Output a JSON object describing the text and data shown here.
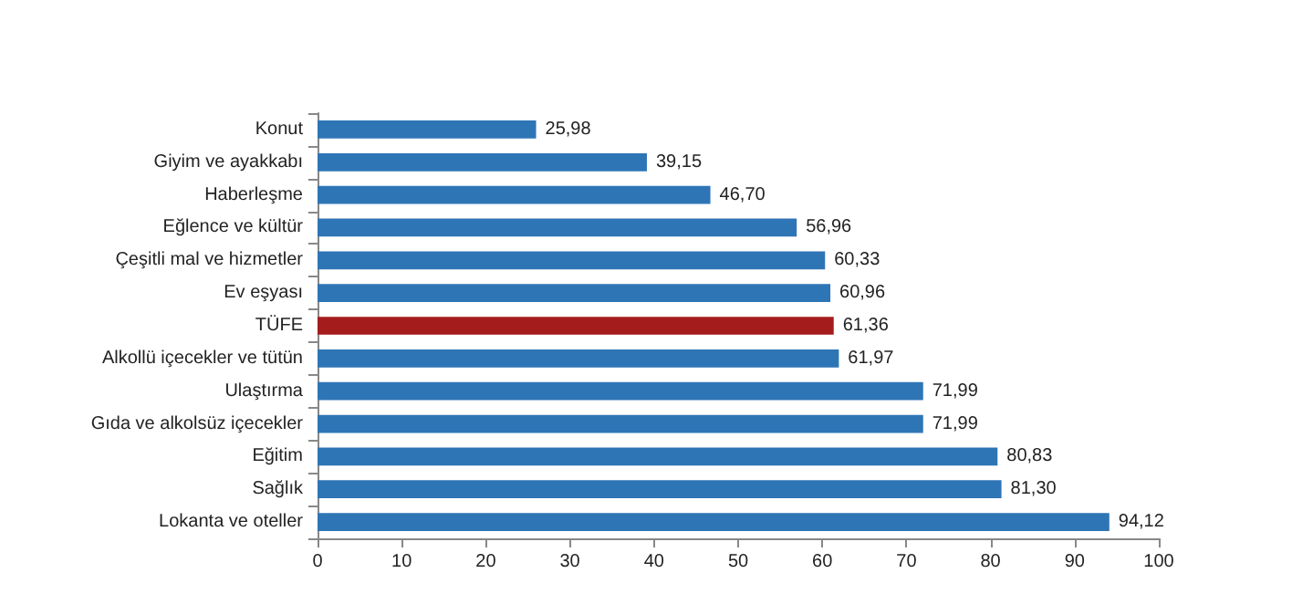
{
  "chart_data": {
    "type": "bar",
    "orientation": "horizontal",
    "categories": [
      "Konut",
      "Giyim ve ayakkabı",
      "Haberleşme",
      "Eğlence ve kültür",
      "Çeşitli mal ve hizmetler",
      "Ev eşyası",
      "TÜFE",
      "Alkollü içecekler ve tütün",
      "Ulaştırma",
      "Gıda ve alkolsüz içecekler",
      "Eğitim",
      "Sağlık",
      "Lokanta ve oteller"
    ],
    "values": [
      25.98,
      39.15,
      46.7,
      56.96,
      60.33,
      60.96,
      61.36,
      61.97,
      71.99,
      71.99,
      80.83,
      81.3,
      94.12
    ],
    "value_labels": [
      "25,98",
      "39,15",
      "46,70",
      "56,96",
      "60,33",
      "60,96",
      "61,36",
      "61,97",
      "71,99",
      "71,99",
      "80,83",
      "81,30",
      "94,12"
    ],
    "colors": [
      "#2e75b6",
      "#2e75b6",
      "#2e75b6",
      "#2e75b6",
      "#2e75b6",
      "#2e75b6",
      "#a51c1c",
      "#2e75b6",
      "#2e75b6",
      "#2e75b6",
      "#2e75b6",
      "#2e75b6",
      "#2e75b6"
    ],
    "xlim": [
      0,
      100
    ],
    "xticks": [
      0,
      10,
      20,
      30,
      40,
      50,
      60,
      70,
      80,
      90,
      100
    ],
    "grid": false
  }
}
